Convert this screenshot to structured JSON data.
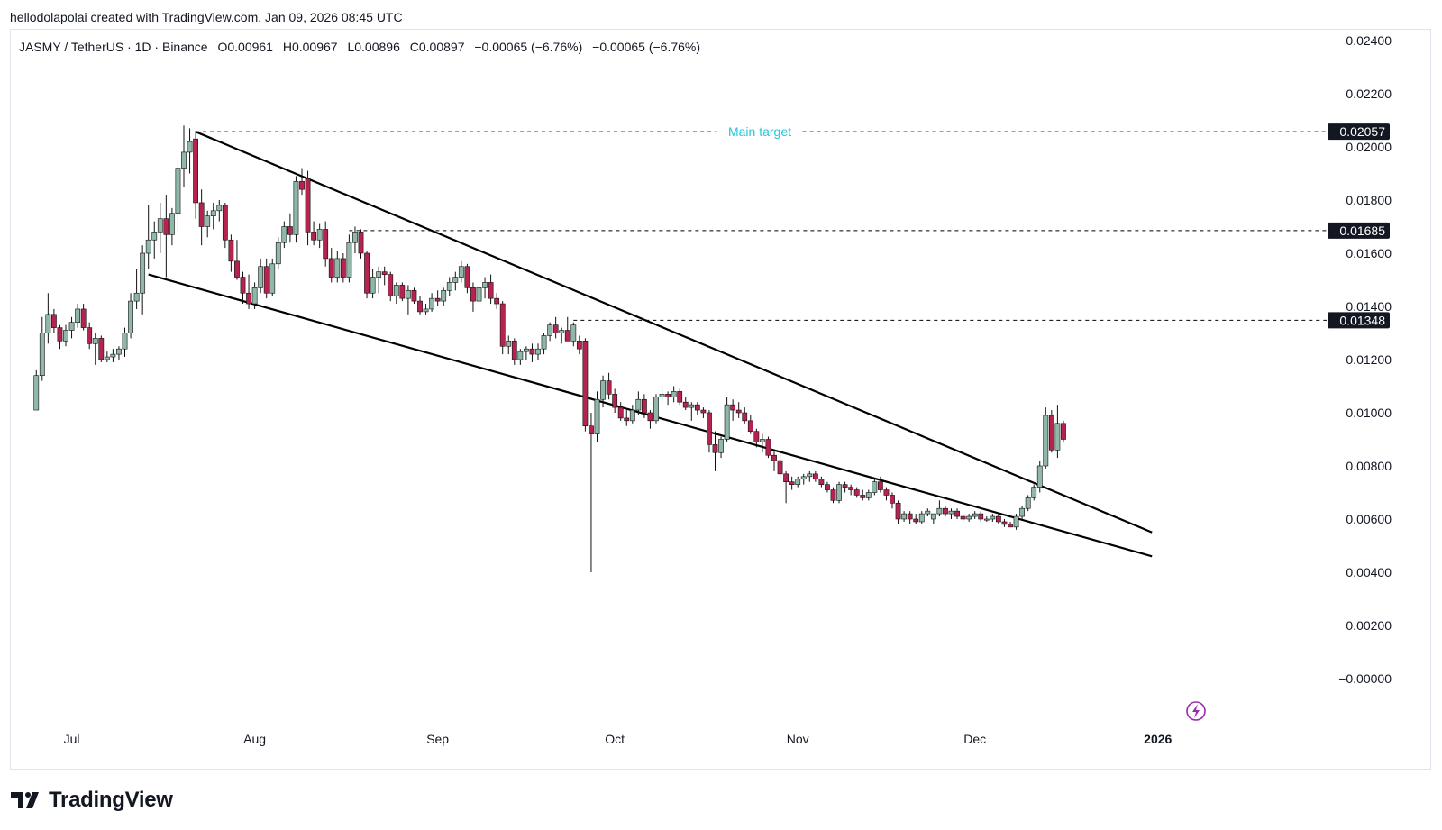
{
  "header": {
    "author": "hellodolapolai",
    "created_with": "created with TradingView.com,",
    "timestamp": "Jan 09, 2026 08:45 UTC"
  },
  "legend": {
    "symbol": "JASMY / TetherUS · 1D · Binance",
    "open": "O0.00961",
    "high": "H0.00967",
    "low": "L0.00896",
    "close": "C0.00897",
    "change": "−0.00065 (−6.76%)",
    "change_repeat": "−0.00065 (−6.76%)"
  },
  "brand": {
    "name": "TradingView"
  },
  "colors": {
    "up": "#8fb8a8",
    "down": "#b5244f",
    "annotation_text": "#26c6da",
    "trendline": "#000000",
    "grid_text": "#131722",
    "lightning_icon": "#9c27b0"
  },
  "icons": {
    "bottom_right": "lightning-bolt-icon",
    "brand": "tradingview-logo-icon"
  },
  "chart_data": {
    "type": "candlestick",
    "title": "JASMY / TetherUS · 1D · Binance",
    "x_labels": [
      "Jul",
      "Aug",
      "Sep",
      "Oct",
      "Nov",
      "Dec",
      "2026"
    ],
    "y_ticks": [
      "0.02400",
      "0.02200",
      "0.02000",
      "0.01800",
      "0.01600",
      "0.01400",
      "0.01200",
      "0.01000",
      "0.00800",
      "0.00600",
      "0.00400",
      "0.00200",
      "−0.00000"
    ],
    "ylim": [
      -0.0001,
      0.0245
    ],
    "horizontal_levels": [
      {
        "value": "0.02057",
        "note": "Main target"
      },
      {
        "value": "0.01685",
        "note": ""
      },
      {
        "value": "0.01348",
        "note": ""
      }
    ],
    "pattern_lines": [
      {
        "name": "upper-trendline",
        "from": {
          "x": "2025-07-22",
          "y": 0.02057
        },
        "to": {
          "x": "2025-12-31",
          "y": 0.0055
        }
      },
      {
        "name": "lower-trendline",
        "from": {
          "x": "2025-07-14",
          "y": 0.0152
        },
        "to": {
          "x": "2025-12-31",
          "y": 0.0046
        }
      }
    ],
    "candles": [
      [
        "2025-06-25",
        0.0101,
        0.0116,
        0.0103,
        0.0114
      ],
      [
        "2025-06-26",
        0.0114,
        0.0136,
        0.0112,
        0.013
      ],
      [
        "2025-06-27",
        0.013,
        0.0145,
        0.0126,
        0.0137
      ],
      [
        "2025-06-28",
        0.0137,
        0.0139,
        0.013,
        0.0132
      ],
      [
        "2025-06-29",
        0.0132,
        0.0133,
        0.0124,
        0.0127
      ],
      [
        "2025-06-30",
        0.0127,
        0.0133,
        0.0125,
        0.0131
      ],
      [
        "2025-07-01",
        0.0131,
        0.0136,
        0.0128,
        0.0134
      ],
      [
        "2025-07-02",
        0.0134,
        0.0141,
        0.0132,
        0.0139
      ],
      [
        "2025-07-03",
        0.0139,
        0.0141,
        0.0131,
        0.0132
      ],
      [
        "2025-07-04",
        0.0132,
        0.0134,
        0.0124,
        0.0126
      ],
      [
        "2025-07-05",
        0.0126,
        0.013,
        0.0118,
        0.0128
      ],
      [
        "2025-07-06",
        0.0128,
        0.0129,
        0.0119,
        0.012
      ],
      [
        "2025-07-07",
        0.012,
        0.0123,
        0.0119,
        0.0121
      ],
      [
        "2025-07-08",
        0.0121,
        0.0124,
        0.0119,
        0.0122
      ],
      [
        "2025-07-09",
        0.0122,
        0.0125,
        0.012,
        0.0124
      ],
      [
        "2025-07-10",
        0.0124,
        0.0132,
        0.0121,
        0.013
      ],
      [
        "2025-07-11",
        0.013,
        0.0145,
        0.0128,
        0.0142
      ],
      [
        "2025-07-12",
        0.0142,
        0.0154,
        0.0139,
        0.0145
      ],
      [
        "2025-07-13",
        0.0145,
        0.0163,
        0.0137,
        0.016
      ],
      [
        "2025-07-14",
        0.016,
        0.0178,
        0.0154,
        0.0165
      ],
      [
        "2025-07-15",
        0.0165,
        0.0172,
        0.0158,
        0.0168
      ],
      [
        "2025-07-16",
        0.0168,
        0.0179,
        0.016,
        0.0173
      ],
      [
        "2025-07-17",
        0.0173,
        0.0182,
        0.0151,
        0.0167
      ],
      [
        "2025-07-18",
        0.0167,
        0.0177,
        0.0163,
        0.0175
      ],
      [
        "2025-07-19",
        0.0175,
        0.0195,
        0.0168,
        0.0192
      ],
      [
        "2025-07-20",
        0.0192,
        0.0208,
        0.0185,
        0.0198
      ],
      [
        "2025-07-21",
        0.0198,
        0.0207,
        0.019,
        0.0202
      ],
      [
        "2025-07-22",
        0.0203,
        0.0206,
        0.0173,
        0.0179
      ],
      [
        "2025-07-23",
        0.0179,
        0.0184,
        0.0163,
        0.017
      ],
      [
        "2025-07-24",
        0.017,
        0.0176,
        0.0166,
        0.0174
      ],
      [
        "2025-07-25",
        0.0174,
        0.0179,
        0.0169,
        0.0176
      ],
      [
        "2025-07-26",
        0.0176,
        0.018,
        0.0172,
        0.0178
      ],
      [
        "2025-07-27",
        0.0178,
        0.0179,
        0.0162,
        0.0165
      ],
      [
        "2025-07-28",
        0.0165,
        0.0167,
        0.0153,
        0.0157
      ],
      [
        "2025-07-29",
        0.0157,
        0.0165,
        0.015,
        0.0151
      ],
      [
        "2025-07-30",
        0.0151,
        0.0153,
        0.0141,
        0.0145
      ],
      [
        "2025-07-31",
        0.0145,
        0.0152,
        0.0139,
        0.0141
      ],
      [
        "2025-08-01",
        0.0141,
        0.0149,
        0.0139,
        0.0147
      ],
      [
        "2025-08-02",
        0.0147,
        0.0158,
        0.0145,
        0.0155
      ],
      [
        "2025-08-03",
        0.0155,
        0.0158,
        0.0143,
        0.0145
      ],
      [
        "2025-08-04",
        0.0145,
        0.0158,
        0.0144,
        0.0156
      ],
      [
        "2025-08-05",
        0.0156,
        0.0166,
        0.0154,
        0.0164
      ],
      [
        "2025-08-06",
        0.0164,
        0.0172,
        0.0162,
        0.017
      ],
      [
        "2025-08-07",
        0.017,
        0.0175,
        0.0164,
        0.0167
      ],
      [
        "2025-08-08",
        0.0167,
        0.0189,
        0.0164,
        0.0187
      ],
      [
        "2025-08-09",
        0.0187,
        0.0192,
        0.0182,
        0.0184
      ],
      [
        "2025-08-10",
        0.0188,
        0.0191,
        0.0163,
        0.0168
      ],
      [
        "2025-08-11",
        0.0168,
        0.0172,
        0.0163,
        0.0165
      ],
      [
        "2025-08-12",
        0.0165,
        0.0171,
        0.0162,
        0.0169
      ],
      [
        "2025-08-13",
        0.0169,
        0.0172,
        0.0155,
        0.0158
      ],
      [
        "2025-08-14",
        0.0158,
        0.0162,
        0.0149,
        0.0151
      ],
      [
        "2025-08-15",
        0.0151,
        0.0161,
        0.0149,
        0.0158
      ],
      [
        "2025-08-16",
        0.0158,
        0.016,
        0.0149,
        0.0151
      ],
      [
        "2025-08-17",
        0.0151,
        0.0167,
        0.0149,
        0.0164
      ],
      [
        "2025-08-18",
        0.0164,
        0.017,
        0.016,
        0.0168
      ],
      [
        "2025-08-19",
        0.0168,
        0.0169,
        0.0158,
        0.016
      ],
      [
        "2025-08-20",
        0.016,
        0.0161,
        0.0143,
        0.0145
      ],
      [
        "2025-08-21",
        0.0145,
        0.0154,
        0.0143,
        0.0151
      ],
      [
        "2025-08-22",
        0.0151,
        0.0155,
        0.0145,
        0.0153
      ],
      [
        "2025-08-23",
        0.0153,
        0.0155,
        0.0148,
        0.0152
      ],
      [
        "2025-08-24",
        0.0152,
        0.0153,
        0.0142,
        0.0144
      ],
      [
        "2025-08-25",
        0.0144,
        0.0149,
        0.0141,
        0.0148
      ],
      [
        "2025-08-26",
        0.0148,
        0.0149,
        0.0142,
        0.0143
      ],
      [
        "2025-08-27",
        0.0143,
        0.0148,
        0.0137,
        0.0146
      ],
      [
        "2025-08-28",
        0.0146,
        0.0147,
        0.0141,
        0.0142
      ],
      [
        "2025-08-29",
        0.0142,
        0.0144,
        0.0137,
        0.0138
      ],
      [
        "2025-08-30",
        0.0138,
        0.0141,
        0.0137,
        0.0139
      ],
      [
        "2025-08-31",
        0.0139,
        0.0145,
        0.0138,
        0.0143
      ],
      [
        "2025-09-01",
        0.0143,
        0.0146,
        0.014,
        0.0142
      ],
      [
        "2025-09-02",
        0.0142,
        0.0147,
        0.014,
        0.0146
      ],
      [
        "2025-09-03",
        0.0146,
        0.0151,
        0.0144,
        0.0149
      ],
      [
        "2025-09-04",
        0.0149,
        0.0153,
        0.0146,
        0.0151
      ],
      [
        "2025-09-05",
        0.0151,
        0.0157,
        0.0149,
        0.0155
      ],
      [
        "2025-09-06",
        0.0155,
        0.0156,
        0.0145,
        0.0147
      ],
      [
        "2025-09-07",
        0.0147,
        0.0149,
        0.0138,
        0.0142
      ],
      [
        "2025-09-08",
        0.0142,
        0.0149,
        0.014,
        0.0147
      ],
      [
        "2025-09-09",
        0.0147,
        0.0151,
        0.0143,
        0.0149
      ],
      [
        "2025-09-10",
        0.0149,
        0.0152,
        0.0141,
        0.0143
      ],
      [
        "2025-09-11",
        0.0143,
        0.0145,
        0.0139,
        0.0141
      ],
      [
        "2025-09-12",
        0.0141,
        0.0142,
        0.0122,
        0.0125
      ],
      [
        "2025-09-13",
        0.0125,
        0.0129,
        0.0122,
        0.0127
      ],
      [
        "2025-09-14",
        0.0127,
        0.0128,
        0.0118,
        0.012
      ],
      [
        "2025-09-15",
        0.012,
        0.0124,
        0.0118,
        0.0123
      ],
      [
        "2025-09-16",
        0.0123,
        0.0125,
        0.012,
        0.0124
      ],
      [
        "2025-09-17",
        0.0124,
        0.0126,
        0.0119,
        0.0122
      ],
      [
        "2025-09-18",
        0.0122,
        0.0126,
        0.012,
        0.0124
      ],
      [
        "2025-09-19",
        0.0124,
        0.013,
        0.0122,
        0.0129
      ],
      [
        "2025-09-20",
        0.0129,
        0.0134,
        0.0127,
        0.0133
      ],
      [
        "2025-09-21",
        0.0133,
        0.0136,
        0.0128,
        0.013
      ],
      [
        "2025-09-22",
        0.013,
        0.0132,
        0.0126,
        0.0131
      ],
      [
        "2025-09-23",
        0.0131,
        0.0136,
        0.0128,
        0.0127
      ],
      [
        "2025-09-24",
        0.0127,
        0.0134,
        0.0125,
        0.0133
      ],
      [
        "2025-09-25",
        0.0127,
        0.0129,
        0.0122,
        0.0124
      ],
      [
        "2025-09-26",
        0.0127,
        0.0128,
        0.0093,
        0.0095
      ],
      [
        "2025-09-27",
        0.0095,
        0.01,
        0.004,
        0.0092
      ],
      [
        "2025-09-28",
        0.0092,
        0.0108,
        0.0089,
        0.0105
      ],
      [
        "2025-09-29",
        0.0105,
        0.0114,
        0.0102,
        0.0112
      ],
      [
        "2025-09-30",
        0.0112,
        0.0115,
        0.0105,
        0.0107
      ],
      [
        "2025-10-01",
        0.0107,
        0.0109,
        0.01,
        0.0102
      ],
      [
        "2025-10-02",
        0.0102,
        0.0104,
        0.0097,
        0.0098
      ],
      [
        "2025-10-03",
        0.0098,
        0.0101,
        0.0095,
        0.0097
      ],
      [
        "2025-10-04",
        0.0097,
        0.0103,
        0.0096,
        0.0101
      ],
      [
        "2025-10-05",
        0.0101,
        0.0108,
        0.0099,
        0.0105
      ],
      [
        "2025-10-06",
        0.0105,
        0.0107,
        0.0098,
        0.01
      ],
      [
        "2025-10-07",
        0.01,
        0.0101,
        0.0094,
        0.0097
      ],
      [
        "2025-10-08",
        0.0097,
        0.0107,
        0.0096,
        0.0106
      ],
      [
        "2025-10-09",
        0.0106,
        0.011,
        0.0104,
        0.0107
      ],
      [
        "2025-10-10",
        0.0107,
        0.0108,
        0.0103,
        0.0106
      ],
      [
        "2025-10-11",
        0.0106,
        0.011,
        0.0104,
        0.0108
      ],
      [
        "2025-10-12",
        0.0108,
        0.0109,
        0.0103,
        0.0104
      ],
      [
        "2025-10-13",
        0.0104,
        0.0106,
        0.0101,
        0.0102
      ],
      [
        "2025-10-14",
        0.0102,
        0.0104,
        0.0097,
        0.0103
      ],
      [
        "2025-10-15",
        0.0103,
        0.0104,
        0.0099,
        0.0101
      ],
      [
        "2025-10-16",
        0.0101,
        0.0102,
        0.0098,
        0.01
      ],
      [
        "2025-10-17",
        0.01,
        0.0101,
        0.0085,
        0.0088
      ],
      [
        "2025-10-18",
        0.0088,
        0.0093,
        0.0078,
        0.0085
      ],
      [
        "2025-10-19",
        0.0085,
        0.0091,
        0.0083,
        0.009
      ],
      [
        "2025-10-20",
        0.009,
        0.0106,
        0.0089,
        0.0103
      ],
      [
        "2025-10-21",
        0.0103,
        0.0105,
        0.0097,
        0.0101
      ],
      [
        "2025-10-22",
        0.0101,
        0.0104,
        0.0098,
        0.01
      ],
      [
        "2025-10-23",
        0.01,
        0.0102,
        0.0096,
        0.0097
      ],
      [
        "2025-10-24",
        0.0097,
        0.0099,
        0.0092,
        0.0093
      ],
      [
        "2025-10-25",
        0.0093,
        0.0094,
        0.0087,
        0.0089
      ],
      [
        "2025-10-26",
        0.0089,
        0.0092,
        0.0085,
        0.009
      ],
      [
        "2025-10-27",
        0.009,
        0.0091,
        0.0083,
        0.0084
      ],
      [
        "2025-10-28",
        0.0084,
        0.0086,
        0.0078,
        0.0082
      ],
      [
        "2025-10-29",
        0.0082,
        0.0085,
        0.0075,
        0.0077
      ],
      [
        "2025-10-30",
        0.0077,
        0.0078,
        0.0066,
        0.0074
      ],
      [
        "2025-10-31",
        0.0074,
        0.0076,
        0.0071,
        0.0073
      ],
      [
        "2025-11-01",
        0.0073,
        0.0076,
        0.0072,
        0.0075
      ],
      [
        "2025-11-02",
        0.0075,
        0.0077,
        0.0073,
        0.0076
      ],
      [
        "2025-11-03",
        0.0076,
        0.0078,
        0.0074,
        0.0077
      ],
      [
        "2025-11-04",
        0.0077,
        0.0078,
        0.0074,
        0.0075
      ],
      [
        "2025-11-05",
        0.0075,
        0.0076,
        0.0072,
        0.0073
      ],
      [
        "2025-11-06",
        0.0073,
        0.0074,
        0.007,
        0.0071
      ],
      [
        "2025-11-07",
        0.0071,
        0.0072,
        0.0066,
        0.0067
      ],
      [
        "2025-11-08",
        0.0067,
        0.0074,
        0.0066,
        0.0073
      ],
      [
        "2025-11-09",
        0.0073,
        0.0074,
        0.007,
        0.0072
      ],
      [
        "2025-11-10",
        0.0072,
        0.0073,
        0.0069,
        0.0071
      ],
      [
        "2025-11-11",
        0.0071,
        0.0072,
        0.0068,
        0.0069
      ],
      [
        "2025-11-12",
        0.0069,
        0.0071,
        0.0067,
        0.0068
      ],
      [
        "2025-11-13",
        0.0068,
        0.0071,
        0.0067,
        0.007
      ],
      [
        "2025-11-14",
        0.007,
        0.0075,
        0.0069,
        0.0074
      ],
      [
        "2025-11-15",
        0.0074,
        0.0076,
        0.007,
        0.0071
      ],
      [
        "2025-11-16",
        0.0071,
        0.0072,
        0.0067,
        0.0069
      ],
      [
        "2025-11-17",
        0.0069,
        0.007,
        0.0064,
        0.0066
      ],
      [
        "2025-11-18",
        0.0066,
        0.0067,
        0.0058,
        0.006
      ],
      [
        "2025-11-19",
        0.006,
        0.0063,
        0.0059,
        0.0062
      ],
      [
        "2025-11-20",
        0.0062,
        0.0063,
        0.0058,
        0.006
      ],
      [
        "2025-11-21",
        0.006,
        0.0062,
        0.0058,
        0.0059
      ],
      [
        "2025-11-22",
        0.0059,
        0.0063,
        0.0058,
        0.0062
      ],
      [
        "2025-11-23",
        0.0062,
        0.0064,
        0.0061,
        0.0063
      ],
      [
        "2025-11-24",
        0.006,
        0.0062,
        0.0058,
        0.0062
      ],
      [
        "2025-11-25",
        0.0062,
        0.0067,
        0.0061,
        0.0064
      ],
      [
        "2025-11-26",
        0.0064,
        0.0065,
        0.0061,
        0.0062
      ],
      [
        "2025-11-27",
        0.0062,
        0.0064,
        0.006,
        0.0063
      ],
      [
        "2025-11-28",
        0.0063,
        0.0064,
        0.006,
        0.0061
      ],
      [
        "2025-11-29",
        0.0061,
        0.0062,
        0.0059,
        0.006
      ],
      [
        "2025-11-30",
        0.006,
        0.0062,
        0.0059,
        0.0061
      ],
      [
        "2025-12-01",
        0.0061,
        0.0063,
        0.006,
        0.0062
      ],
      [
        "2025-12-02",
        0.0062,
        0.0063,
        0.0059,
        0.006
      ],
      [
        "2025-12-03",
        0.006,
        0.0061,
        0.0059,
        0.006
      ],
      [
        "2025-12-04",
        0.006,
        0.0062,
        0.0059,
        0.0061
      ],
      [
        "2025-12-05",
        0.0061,
        0.0062,
        0.0058,
        0.0059
      ],
      [
        "2025-12-06",
        0.0059,
        0.006,
        0.0057,
        0.0058
      ],
      [
        "2025-12-07",
        0.0058,
        0.0059,
        0.0057,
        0.0057
      ],
      [
        "2025-12-08",
        0.0057,
        0.0062,
        0.0056,
        0.0061
      ],
      [
        "2025-12-09",
        0.0061,
        0.0065,
        0.006,
        0.0064
      ],
      [
        "2025-12-10",
        0.0064,
        0.0069,
        0.0063,
        0.0068
      ],
      [
        "2025-12-11",
        0.0068,
        0.0073,
        0.0067,
        0.0072
      ],
      [
        "2025-12-12",
        0.0072,
        0.0082,
        0.007,
        0.008
      ],
      [
        "2025-12-13",
        0.008,
        0.0102,
        0.0079,
        0.0099
      ],
      [
        "2025-12-14",
        0.0099,
        0.0101,
        0.0085,
        0.0086
      ],
      [
        "2025-12-15",
        0.0086,
        0.0103,
        0.0083,
        0.0096
      ],
      [
        "2025-12-16",
        0.0096,
        0.0097,
        0.0089,
        0.009
      ]
    ]
  }
}
